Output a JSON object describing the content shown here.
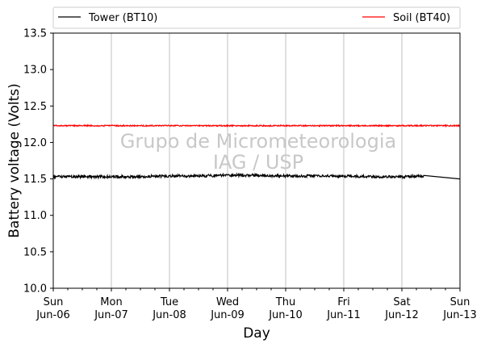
{
  "chart_data": {
    "type": "line",
    "title": "",
    "xlabel": "Day",
    "ylabel": "Battery voltage (Volts)",
    "xlim": [
      "2021-06-06",
      "2021-06-13"
    ],
    "ylim": [
      10.0,
      13.5
    ],
    "yticks": [
      10.0,
      10.5,
      11.0,
      11.5,
      12.0,
      12.5,
      13.0,
      13.5
    ],
    "ytick_labels": [
      "10.0",
      "10.5",
      "11.0",
      "11.5",
      "12.0",
      "12.5",
      "13.0",
      "13.5"
    ],
    "xticks": [
      {
        "date": "2021-06-06",
        "line1": "Sun",
        "line2": "Jun-06"
      },
      {
        "date": "2021-06-07",
        "line1": "Mon",
        "line2": "Jun-07"
      },
      {
        "date": "2021-06-08",
        "line1": "Tue",
        "line2": "Jun-08"
      },
      {
        "date": "2021-06-09",
        "line1": "Wed",
        "line2": "Jun-09"
      },
      {
        "date": "2021-06-10",
        "line1": "Thu",
        "line2": "Jun-10"
      },
      {
        "date": "2021-06-11",
        "line1": "Fri",
        "line2": "Jun-11"
      },
      {
        "date": "2021-06-12",
        "line1": "Sat",
        "line2": "Jun-12"
      },
      {
        "date": "2021-06-13",
        "line1": "Sun",
        "line2": "Jun-13"
      }
    ],
    "grid": "vertical",
    "legend_position": "top",
    "series": [
      {
        "name": "Tower (BT10)",
        "color": "#000000",
        "points": [
          [
            "2021-06-06 00:00",
            11.53
          ],
          [
            "2021-06-06 12:00",
            11.53
          ],
          [
            "2021-06-07 00:00",
            11.53
          ],
          [
            "2021-06-07 12:00",
            11.53
          ],
          [
            "2021-06-08 00:00",
            11.54
          ],
          [
            "2021-06-08 12:00",
            11.54
          ],
          [
            "2021-06-09 00:00",
            11.55
          ],
          [
            "2021-06-09 12:00",
            11.55
          ],
          [
            "2021-06-10 00:00",
            11.54
          ],
          [
            "2021-06-10 12:00",
            11.54
          ],
          [
            "2021-06-11 00:00",
            11.54
          ],
          [
            "2021-06-11 12:00",
            11.53
          ],
          [
            "2021-06-12 00:00",
            11.53
          ],
          [
            "2021-06-12 09:00",
            11.54
          ],
          [
            "2021-06-13 00:00",
            11.5
          ]
        ]
      },
      {
        "name": "Soil (BT40)",
        "color": "#ff0000",
        "points": [
          [
            "2021-06-06 00:00",
            12.23
          ],
          [
            "2021-06-07 00:00",
            12.23
          ],
          [
            "2021-06-08 00:00",
            12.23
          ],
          [
            "2021-06-09 00:00",
            12.23
          ],
          [
            "2021-06-10 00:00",
            12.23
          ],
          [
            "2021-06-11 00:00",
            12.23
          ],
          [
            "2021-06-12 00:00",
            12.23
          ],
          [
            "2021-06-13 00:00",
            12.23
          ]
        ]
      }
    ],
    "watermark": [
      "Grupo de Micrometeorologia",
      "IAG / USP"
    ]
  }
}
